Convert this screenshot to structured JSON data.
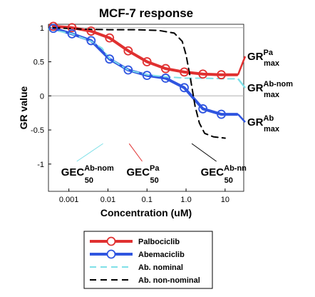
{
  "chart_data": {
    "type": "line",
    "title": "MCF-7 response",
    "xlabel": "Concentration (uM)",
    "ylabel": "GR value",
    "xscale": "log",
    "xlim": [
      0.0003,
      30
    ],
    "ylim": [
      -1.4,
      1.05
    ],
    "xticks": [
      {
        "v": 0.001,
        "label": "0.001"
      },
      {
        "v": 0.01,
        "label": "0.01"
      },
      {
        "v": 0.1,
        "label": "0.1"
      },
      {
        "v": 1,
        "label": "1.0"
      },
      {
        "v": 10,
        "label": "10"
      }
    ],
    "yticks": [
      {
        "v": 1,
        "label": "1"
      },
      {
        "v": 0.5,
        "label": "0.5"
      },
      {
        "v": 0,
        "label": "0"
      },
      {
        "v": -0.5,
        "label": "-0.5"
      },
      {
        "v": -1,
        "label": "-1"
      }
    ],
    "reference_lines": [
      0,
      1
    ],
    "grid": false,
    "legend_position": "bottom",
    "series": [
      {
        "name": "Palbociclib",
        "color": "#e03030",
        "style": "solid-markers",
        "x": [
          0.0004,
          0.0012,
          0.0037,
          0.011,
          0.033,
          0.1,
          0.3,
          0.9,
          2.7,
          8
        ],
        "y": [
          1.02,
          1.0,
          0.95,
          0.85,
          0.66,
          0.5,
          0.4,
          0.35,
          0.32,
          0.31
        ],
        "end": [
          20,
          0.31
        ]
      },
      {
        "name": "Abemaciclib",
        "color": "#2f55e0",
        "style": "solid-markers",
        "x": [
          0.0004,
          0.0012,
          0.0037,
          0.011,
          0.033,
          0.1,
          0.3,
          0.9,
          2.7,
          8
        ],
        "y": [
          0.99,
          0.91,
          0.81,
          0.54,
          0.38,
          0.3,
          0.26,
          0.12,
          -0.19,
          -0.27
        ],
        "end": [
          20,
          -0.27
        ]
      },
      {
        "name": "Ab. nominal",
        "color": "#7fe0e8",
        "style": "dashed",
        "x": [
          0.0003,
          0.0012,
          0.0037,
          0.007,
          0.011,
          0.033,
          0.1,
          0.3,
          1,
          3,
          10,
          20
        ],
        "y": [
          0.98,
          0.91,
          0.8,
          0.7,
          0.55,
          0.38,
          0.31,
          0.28,
          0.26,
          0.26,
          0.25,
          0.25
        ]
      },
      {
        "name": "Ab. non-nominal",
        "color": "#000000",
        "style": "dashed",
        "x": [
          0.0004,
          0.002,
          0.01,
          0.05,
          0.2,
          0.5,
          0.8,
          1.0,
          1.3,
          1.7,
          2.2,
          3,
          5,
          10
        ],
        "y": [
          1.0,
          0.98,
          0.97,
          0.97,
          0.96,
          0.92,
          0.8,
          0.6,
          0.25,
          -0.15,
          -0.4,
          -0.55,
          -0.6,
          -0.62
        ]
      }
    ],
    "gec_labels": [
      {
        "main": "GEC",
        "sup": "Ab-nom",
        "sub": "50",
        "color": "#7fe0e8",
        "x": 0.0075
      },
      {
        "main": "GEC",
        "sup": "Pa",
        "sub": "50",
        "color": "#e03030",
        "x": 0.035
      },
      {
        "main": "GEC",
        "sup": "Ab-nn",
        "sub": "50",
        "color": "#000000",
        "x": 1.4
      }
    ],
    "grmax_labels": [
      {
        "main": "GR",
        "sup": "Pa",
        "sub": "max",
        "color": "#e03030",
        "y": 0.31
      },
      {
        "main": "GR",
        "sup": "Ab-nom",
        "sub": "max",
        "color": "#7fe0e8",
        "y": 0.25
      },
      {
        "main": "GR",
        "sup": "Ab",
        "sub": "max",
        "color": "#2f55e0",
        "y": -0.27
      }
    ]
  }
}
